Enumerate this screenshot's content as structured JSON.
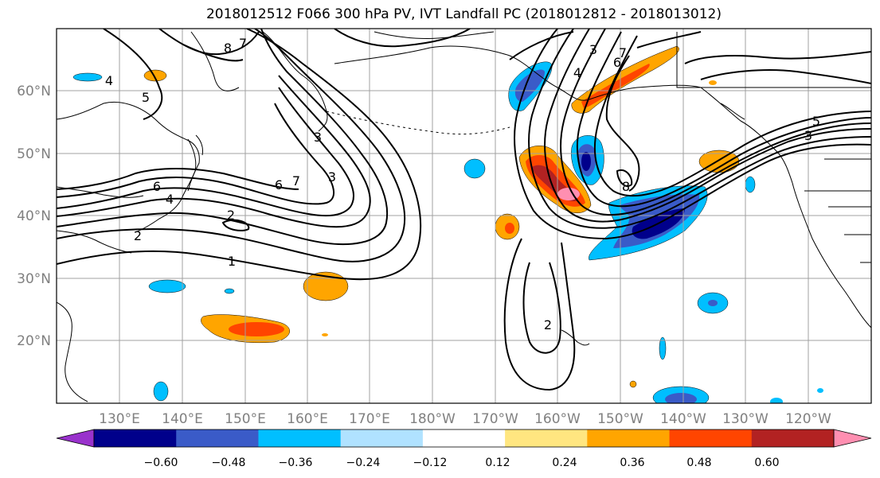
{
  "title": "2018012512 F066 300 hPa PV, IVT Landfall PC (2018012812 - 2018013012)",
  "map": {
    "lat_ticks": [
      "60°N",
      "50°N",
      "40°N",
      "30°N",
      "20°N"
    ],
    "lon_ticks": [
      "130°E",
      "140°E",
      "150°E",
      "160°E",
      "170°E",
      "180°W",
      "170°W",
      "160°W",
      "150°W",
      "140°W",
      "130°W",
      "120°W"
    ],
    "contour_labels": [
      "8",
      "7",
      "5",
      "4",
      "3",
      "6",
      "7",
      "3",
      "6",
      "4",
      "2",
      "2",
      "1",
      "2",
      "3",
      "7",
      "6",
      "4",
      "5",
      "3",
      "8"
    ]
  },
  "colorbar": {
    "ticks": [
      "−0.60",
      "−0.48",
      "−0.36",
      "−0.24",
      "−0.12",
      "0.12",
      "0.24",
      "0.36",
      "0.48",
      "0.60"
    ],
    "colors": [
      "#9932CC",
      "#00008B",
      "#3A5BC8",
      "#00BFFF",
      "#B0E2FF",
      "#FFFFFF",
      "#FFE680",
      "#FFA500",
      "#FF4500",
      "#B22222",
      "#FF8FB1"
    ]
  },
  "colors": {
    "contour": "#000000",
    "coast": "#000000",
    "grid": "#a0a0a0",
    "tick_label": "#808080"
  }
}
